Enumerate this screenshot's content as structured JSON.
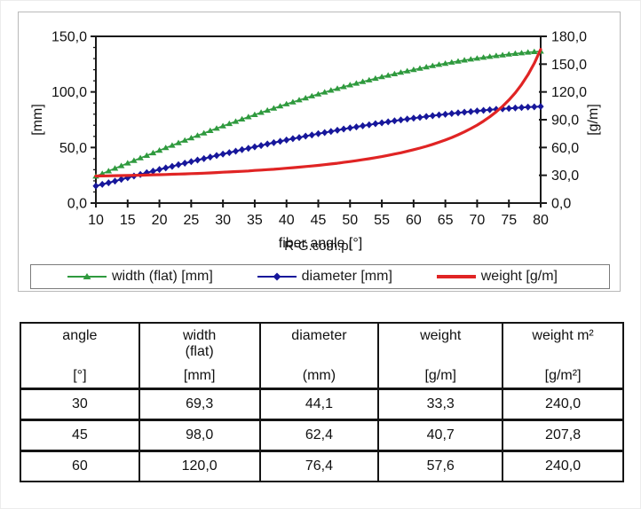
{
  "chart": {
    "y_left_label": "[mm]",
    "y_right_label": "[g/m]",
    "x_label": "fiber angle [°]",
    "watermark": "R-G.com.pl",
    "colors": {
      "width": "#2f9a3e",
      "diameter": "#17179b",
      "weight": "#e02424",
      "axis": "#1a1a1a"
    },
    "legend": [
      {
        "label": "width (flat) [mm]",
        "color": "#2f9a3e",
        "marker": "triangle"
      },
      {
        "label": "diameter [mm]",
        "color": "#17179b",
        "marker": "diamond"
      },
      {
        "label": "weight [g/m]",
        "color": "#e02424",
        "marker": "none"
      }
    ]
  },
  "chart_data": {
    "type": "line",
    "title": "",
    "xlabel": "fiber angle [°]",
    "ylabel_left": "[mm]",
    "ylabel_right": "[g/m]",
    "xlim": [
      10,
      80
    ],
    "ylim_left": [
      0,
      150
    ],
    "ylim_right": [
      0,
      180
    ],
    "grid": false,
    "legend_position": "bottom",
    "x_ticks": [
      10,
      15,
      20,
      25,
      30,
      35,
      40,
      45,
      50,
      55,
      60,
      65,
      70,
      75,
      80
    ],
    "x_tick_labels": [
      "10",
      "15",
      "20",
      "25",
      "30",
      "35",
      "40",
      "45",
      "50",
      "55",
      "60",
      "65",
      "70",
      "75",
      "80"
    ],
    "y_ticks_left": [
      0,
      50,
      100,
      150
    ],
    "y_tick_labels_left": [
      "0,0",
      "50,0",
      "100,0",
      "150,0"
    ],
    "y_minor_step_left": 10,
    "y_ticks_right": [
      0,
      30,
      60,
      90,
      120,
      150,
      180
    ],
    "y_tick_labels_right": [
      "0,0",
      "30,0",
      "60,0",
      "90,0",
      "120,0",
      "150,0",
      "180,0"
    ],
    "x": [
      10,
      11,
      12,
      13,
      14,
      15,
      16,
      17,
      18,
      19,
      20,
      21,
      22,
      23,
      24,
      25,
      26,
      27,
      28,
      29,
      30,
      31,
      32,
      33,
      34,
      35,
      36,
      37,
      38,
      39,
      40,
      41,
      42,
      43,
      44,
      45,
      46,
      47,
      48,
      49,
      50,
      51,
      52,
      53,
      54,
      55,
      56,
      57,
      58,
      59,
      60,
      61,
      62,
      63,
      64,
      65,
      66,
      67,
      68,
      69,
      70,
      71,
      72,
      73,
      74,
      75,
      76,
      77,
      78,
      79,
      80
    ],
    "series": [
      {
        "name": "width (flat) [mm]",
        "axis": "left",
        "color": "#2f9a3e",
        "marker": "triangle",
        "line_width": 1.6,
        "values": [
          24.1,
          26.4,
          28.8,
          31.2,
          33.5,
          35.9,
          38.2,
          40.5,
          42.8,
          45.1,
          47.4,
          49.7,
          51.9,
          54.2,
          56.4,
          58.6,
          60.8,
          62.9,
          65.1,
          67.2,
          69.3,
          71.4,
          73.4,
          75.5,
          77.5,
          79.5,
          81.5,
          83.4,
          85.3,
          87.2,
          89.1,
          90.9,
          92.7,
          94.5,
          96.3,
          98.0,
          99.7,
          101.4,
          103.0,
          104.6,
          106.2,
          107.7,
          109.2,
          110.7,
          112.1,
          113.5,
          114.9,
          116.2,
          117.5,
          118.8,
          120.0,
          121.2,
          122.4,
          123.5,
          124.6,
          125.6,
          126.6,
          127.6,
          128.5,
          129.4,
          130.2,
          131.0,
          131.8,
          132.5,
          133.2,
          133.9,
          134.5,
          135.0,
          135.6,
          136.1,
          136.5
        ]
      },
      {
        "name": "diameter [mm]",
        "axis": "left",
        "color": "#17179b",
        "marker": "diamond",
        "line_width": 2,
        "values": [
          15.3,
          16.8,
          18.3,
          19.8,
          21.3,
          22.8,
          24.3,
          25.8,
          27.3,
          28.7,
          30.2,
          31.6,
          33.0,
          34.5,
          35.9,
          37.3,
          38.7,
          40.0,
          41.4,
          42.8,
          44.1,
          45.4,
          46.7,
          48.0,
          49.3,
          50.6,
          51.8,
          53.1,
          54.3,
          55.5,
          56.7,
          57.9,
          59.0,
          60.2,
          61.3,
          62.4,
          63.4,
          64.5,
          65.5,
          66.6,
          67.6,
          68.5,
          69.5,
          70.4,
          71.4,
          72.2,
          73.1,
          74.0,
          74.8,
          75.6,
          76.4,
          77.1,
          77.9,
          78.6,
          79.3,
          79.9,
          80.6,
          81.2,
          81.8,
          82.3,
          82.9,
          83.4,
          83.9,
          84.3,
          84.8,
          85.2,
          85.6,
          85.9,
          86.3,
          86.6,
          86.9
        ]
      },
      {
        "name": "weight [g/m]",
        "axis": "right",
        "color": "#e02424",
        "marker": "none",
        "line_width": 3.2,
        "values": [
          29.2,
          29.3,
          29.4,
          29.6,
          29.7,
          29.8,
          30.0,
          30.1,
          30.3,
          30.5,
          30.6,
          30.8,
          31.1,
          31.3,
          31.5,
          31.8,
          32.0,
          32.3,
          32.6,
          32.9,
          33.3,
          33.6,
          34.0,
          34.3,
          34.7,
          35.2,
          35.6,
          36.1,
          36.5,
          37.1,
          37.6,
          38.2,
          38.8,
          39.4,
          40.0,
          40.7,
          41.5,
          42.2,
          43.0,
          43.9,
          44.8,
          45.8,
          46.8,
          47.9,
          49.0,
          50.2,
          51.5,
          52.9,
          54.3,
          55.9,
          57.6,
          59.4,
          61.3,
          63.4,
          65.7,
          68.1,
          70.8,
          73.7,
          76.9,
          80.4,
          84.2,
          88.5,
          93.2,
          98.5,
          104.5,
          111.3,
          119.0,
          128.0,
          138.5,
          150.9,
          165.9
        ]
      }
    ]
  },
  "table": {
    "headers": [
      {
        "line1": "angle",
        "line2": "",
        "unit": "[°]"
      },
      {
        "line1": "width",
        "line2": "(flat)",
        "unit": "[mm]"
      },
      {
        "line1": "diameter",
        "line2": "",
        "unit": "(mm)"
      },
      {
        "line1": "weight",
        "line2": "",
        "unit": "[g/m]"
      },
      {
        "line1": "weight m²",
        "line2": "",
        "unit": "[g/m²]"
      }
    ],
    "rows": [
      [
        "30",
        "69,3",
        "44,1",
        "33,3",
        "240,0"
      ],
      [
        "45",
        "98,0",
        "62,4",
        "40,7",
        "207,8"
      ],
      [
        "60",
        "120,0",
        "76,4",
        "57,6",
        "240,0"
      ]
    ]
  }
}
